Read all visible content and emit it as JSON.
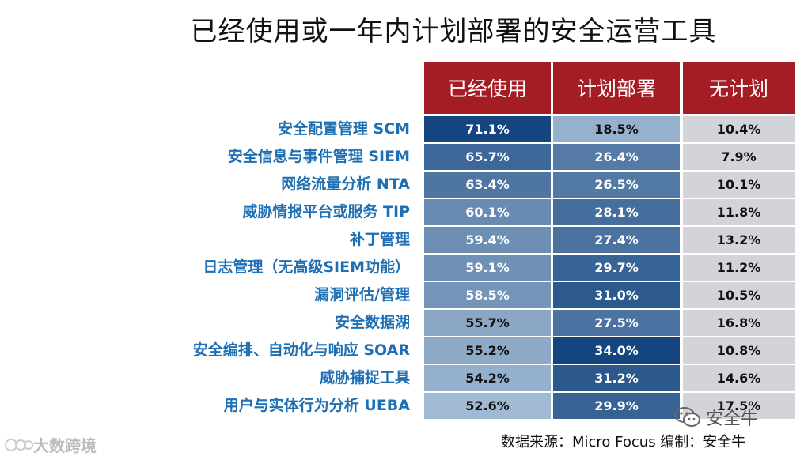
{
  "title": "已经使用或一年内计划部署的安全运营工具",
  "chart_data": {
    "type": "table",
    "columns": [
      "已经使用",
      "计划部署",
      "无计划"
    ],
    "rows": [
      {
        "label": "安全配置管理 SCM",
        "values": [
          "71.1%",
          "18.5%",
          "10.4%"
        ]
      },
      {
        "label": "安全信息与事件管理 SIEM",
        "values": [
          "65.7%",
          "26.4%",
          "7.9%"
        ]
      },
      {
        "label": "网络流量分析 NTA",
        "values": [
          "63.4%",
          "26.5%",
          "10.1%"
        ]
      },
      {
        "label": "威胁情报平台或服务 TIP",
        "values": [
          "60.1%",
          "28.1%",
          "11.8%"
        ]
      },
      {
        "label": "补丁管理",
        "values": [
          "59.4%",
          "27.4%",
          "13.2%"
        ]
      },
      {
        "label": "日志管理（无高级SIEM功能）",
        "values": [
          "59.1%",
          "29.7%",
          "11.2%"
        ]
      },
      {
        "label": "漏洞评估/管理",
        "values": [
          "58.5%",
          "31.0%",
          "10.5%"
        ]
      },
      {
        "label": "安全数据湖",
        "values": [
          "55.7%",
          "27.5%",
          "16.8%"
        ]
      },
      {
        "label": "安全编排、自动化与响应 SOAR",
        "values": [
          "55.2%",
          "34.0%",
          "10.8%"
        ]
      },
      {
        "label": "威胁捕捉工具",
        "values": [
          "54.2%",
          "31.2%",
          "14.6%"
        ]
      },
      {
        "label": "用户与实体行为分析 UEBA",
        "values": [
          "52.6%",
          "29.9%",
          "17.5%"
        ]
      }
    ]
  },
  "colors": {
    "header_bg": "#a51d24",
    "deep_blue": "#14457f",
    "light_blue": "#b8cde1",
    "grey_cell": "#d2d4d7",
    "label_blue": "#1e6fb3"
  },
  "footer": "数据来源：Micro Focus  编制：安全牛",
  "watermark_right": "安全牛",
  "watermark_left": "大数跨境"
}
